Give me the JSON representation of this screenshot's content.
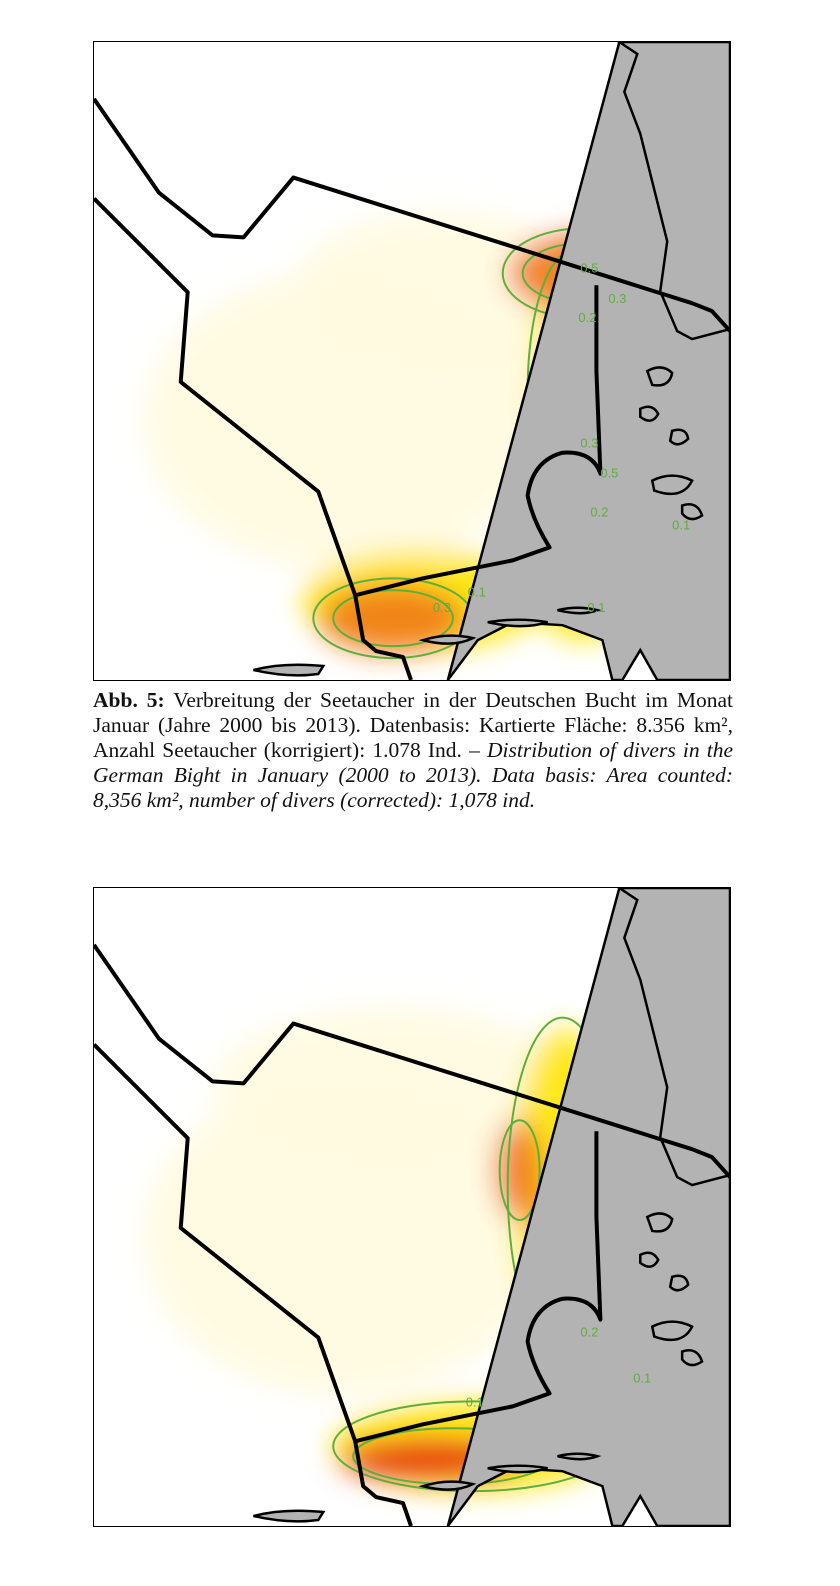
{
  "figure": {
    "caption_label": "Abb. 5:",
    "caption_de": "Verbreitung der Seetaucher in der Deutschen Bucht im Monat Januar (Jahre 2000 bis 2013). Datenbasis: Kartierte Fläche: 8.356 km², Anzahl Seetaucher (korrigiert): 1.078 Ind.",
    "caption_en": "– Distribution of divers in the German Bight in January (2000 to 2013). Data basis: Area counted: 8,356 km², number of divers (corrected): 1,078 ind."
  },
  "colors": {
    "land": "#b3b3b3",
    "contour": "#5fae3c",
    "low": "#fffbe0",
    "mid": "#ffe600",
    "high": "#f07a1a",
    "peak": "#e52a10"
  },
  "maps": [
    {
      "name": "top",
      "contour_labels": [
        "0.5",
        "0.3",
        "0.2",
        "0.3",
        "0.5",
        "0.2",
        "0.1",
        "0.1",
        "0.3",
        "0.1"
      ]
    },
    {
      "name": "bottom",
      "contour_labels": [
        "0.2",
        "0.1",
        "0.1"
      ]
    }
  ]
}
